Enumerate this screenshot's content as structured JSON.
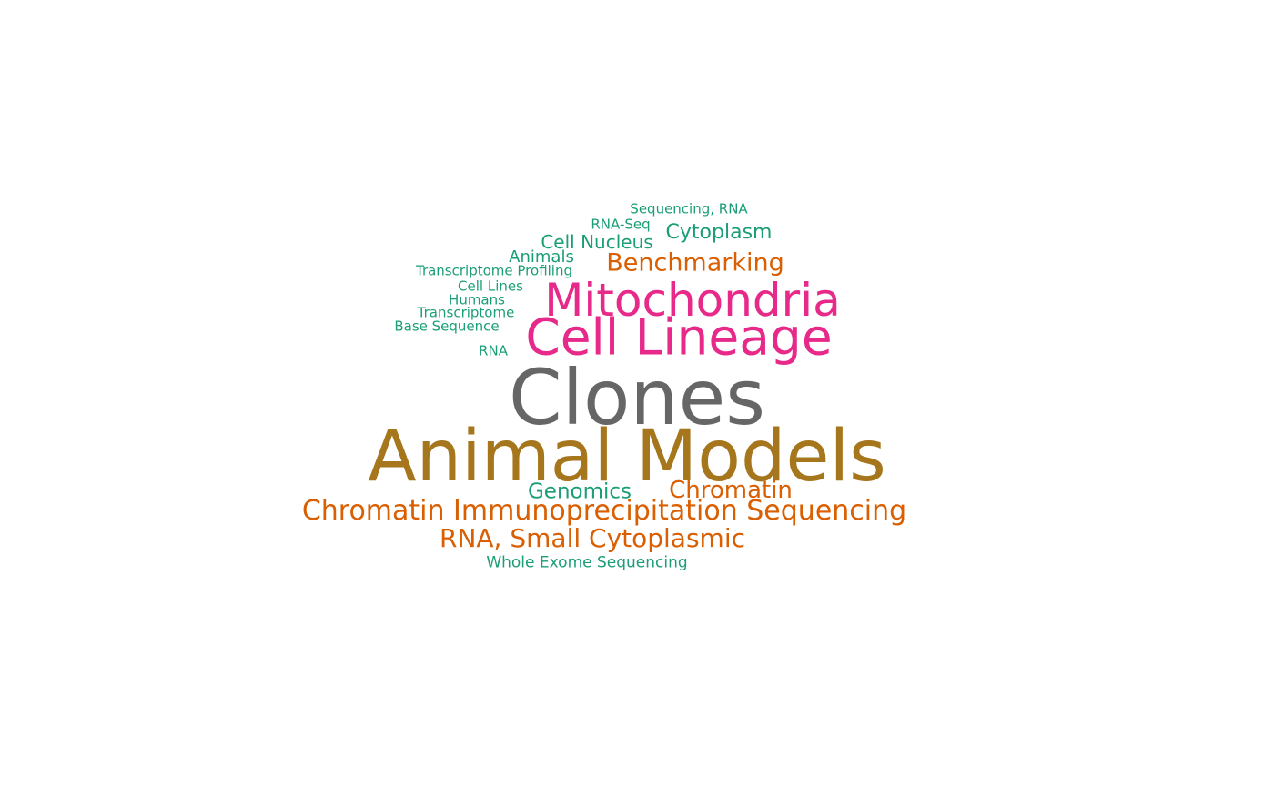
{
  "words": {
    "sequencing_rna": "Sequencing, RNA",
    "rna_seq": "RNA-Seq",
    "cytoplasm": "Cytoplasm",
    "cell_nucleus": "Cell Nucleus",
    "animals": "Animals",
    "benchmarking": "Benchmarking",
    "transcriptome_profiling": "Transcriptome Profiling",
    "cell_lines": "Cell Lines",
    "mitochondria": "Mitochondria",
    "humans": "Humans",
    "transcriptome": "Transcriptome",
    "base_sequence": "Base Sequence",
    "cell_lineage": "Cell Lineage",
    "rna": "RNA",
    "clones": "Clones",
    "animal_models": "Animal Models",
    "genomics": "Genomics",
    "chromatin": "Chromatin",
    "chip_seq": "Chromatin Immunoprecipitation Sequencing",
    "rna_small_cytoplasmic": "RNA, Small Cytoplasmic",
    "whole_exome_sequencing": "Whole Exome Sequencing"
  },
  "colors": {
    "green": "#1b9e77",
    "orange": "#d95f02",
    "pink": "#e7298a",
    "gray": "#666666",
    "gold": "#a6761d"
  }
}
